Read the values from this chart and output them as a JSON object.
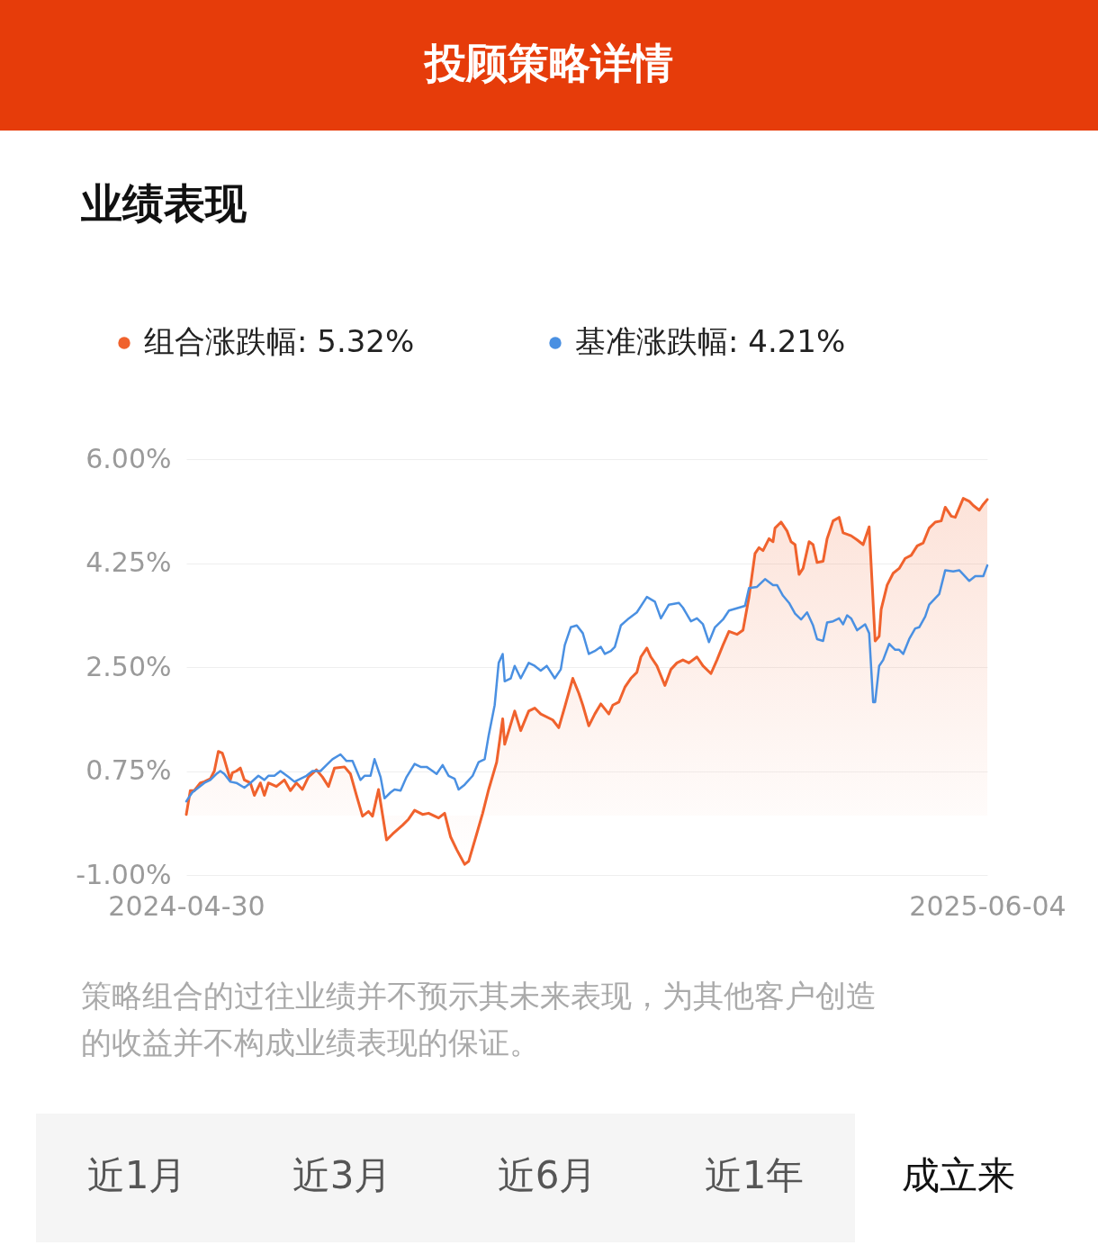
{
  "chart_data": {
    "type": "line",
    "title": "投顾策略详情",
    "subtitle": "业绩表现",
    "xlim": [
      "2024-04-30",
      "2025-06-04"
    ],
    "xticks": [
      "2024-04-30",
      "2025-06-04"
    ],
    "ylim": [
      -1,
      6
    ],
    "yticks": [
      {
        "value": -1,
        "label": "-1.00%"
      },
      {
        "value": 0.75,
        "label": "0.75%"
      },
      {
        "value": 2.5,
        "label": "2.50%"
      },
      {
        "value": 4.25,
        "label": "4.25%"
      },
      {
        "value": 6,
        "label": "6.00%"
      }
    ],
    "grid": "y",
    "legend": "top",
    "line_style": "solid",
    "series": [
      {
        "name": "组合涨跌幅: 5.32%",
        "type": "area",
        "color": "#f0622d",
        "x": [
          "2024-04-30",
          "2024-05-02",
          "2024-05-04",
          "2024-05-07",
          "2024-05-09",
          "2024-05-12",
          "2024-05-14",
          "2024-05-16",
          "2024-05-18",
          "2024-05-19",
          "2024-05-22",
          "2024-05-23",
          "2024-05-25",
          "2024-05-27",
          "2024-05-29",
          "2024-06-01",
          "2024-06-03",
          "2024-06-06",
          "2024-06-08",
          "2024-06-10",
          "2024-06-14",
          "2024-06-18",
          "2024-06-21",
          "2024-06-24",
          "2024-06-27",
          "2024-06-30",
          "2024-07-04",
          "2024-07-07",
          "2024-07-10",
          "2024-07-13",
          "2024-07-18",
          "2024-07-21",
          "2024-07-24",
          "2024-07-27",
          "2024-07-30",
          "2024-08-01",
          "2024-08-04",
          "2024-08-08",
          "2024-08-11",
          "2024-08-16",
          "2024-08-19",
          "2024-08-22",
          "2024-08-26",
          "2024-08-29",
          "2024-09-03",
          "2024-09-06",
          "2024-09-09",
          "2024-09-12",
          "2024-09-16",
          "2024-09-18",
          "2024-09-22",
          "2024-09-25",
          "2024-09-28",
          "2024-10-02",
          "2024-10-05",
          "2024-10-06",
          "2024-10-11",
          "2024-10-14",
          "2024-10-18",
          "2024-10-21",
          "2024-10-24",
          "2024-10-30",
          "2024-11-02",
          "2024-11-05",
          "2024-11-09",
          "2024-11-12",
          "2024-11-14",
          "2024-11-17",
          "2024-11-20",
          "2024-11-23",
          "2024-11-27",
          "2024-11-29",
          "2024-12-02",
          "2024-12-05",
          "2024-12-08",
          "2024-12-11",
          "2024-12-13",
          "2024-12-16",
          "2024-12-18",
          "2024-12-21",
          "2024-12-25",
          "2024-12-28",
          "2024-12-31",
          "2025-01-03",
          "2025-01-06",
          "2025-01-10",
          "2025-01-13",
          "2025-01-17",
          "2025-01-20",
          "2025-01-23",
          "2025-01-26",
          "2025-01-30",
          "2025-02-02",
          "2025-02-05",
          "2025-02-08",
          "2025-02-10",
          "2025-02-12",
          "2025-02-15",
          "2025-02-17",
          "2025-02-18",
          "2025-02-21",
          "2025-02-24",
          "2025-02-26",
          "2025-02-28",
          "2025-03-02",
          "2025-03-04",
          "2025-03-07",
          "2025-03-09",
          "2025-03-11",
          "2025-03-14",
          "2025-03-16",
          "2025-03-19",
          "2025-03-22",
          "2025-03-24",
          "2025-03-28",
          "2025-03-31",
          "2025-04-03",
          "2025-04-06",
          "2025-04-09",
          "2025-04-11",
          "2025-04-12",
          "2025-04-15",
          "2025-04-18",
          "2025-04-21",
          "2025-04-24",
          "2025-04-27",
          "2025-04-30",
          "2025-05-03",
          "2025-05-06",
          "2025-05-09",
          "2025-05-12",
          "2025-05-14",
          "2025-05-17",
          "2025-05-19",
          "2025-05-23",
          "2025-05-26",
          "2025-05-28",
          "2025-05-31",
          "2025-06-02",
          "2025-06-04"
        ],
        "values": [
          0.02,
          0.42,
          0.42,
          0.55,
          0.57,
          0.62,
          0.75,
          1.08,
          1.05,
          0.95,
          0.6,
          0.72,
          0.75,
          0.8,
          0.6,
          0.55,
          0.34,
          0.55,
          0.34,
          0.55,
          0.49,
          0.6,
          0.42,
          0.55,
          0.44,
          0.65,
          0.77,
          0.65,
          0.49,
          0.8,
          0.82,
          0.7,
          0.34,
          -0.01,
          0.07,
          -0.01,
          0.44,
          -0.41,
          -0.31,
          -0.16,
          -0.06,
          0.09,
          0.02,
          0.04,
          -0.04,
          0.04,
          -0.36,
          -0.57,
          -0.82,
          -0.77,
          -0.31,
          0.04,
          0.44,
          0.9,
          1.63,
          1.2,
          1.76,
          1.43,
          1.76,
          1.81,
          1.71,
          1.61,
          1.48,
          1.83,
          2.31,
          2.06,
          1.86,
          1.51,
          1.71,
          1.88,
          1.71,
          1.86,
          1.91,
          2.16,
          2.31,
          2.41,
          2.67,
          2.82,
          2.67,
          2.52,
          2.19,
          2.46,
          2.57,
          2.62,
          2.57,
          2.67,
          2.52,
          2.39,
          2.62,
          2.87,
          3.1,
          3.05,
          3.12,
          3.68,
          4.41,
          4.51,
          4.46,
          4.66,
          4.61,
          4.84,
          4.94,
          4.79,
          4.61,
          4.56,
          4.06,
          4.16,
          4.61,
          4.56,
          4.26,
          4.28,
          4.66,
          4.96,
          5.02,
          4.76,
          4.71,
          4.64,
          4.56,
          4.86,
          2.94,
          3.02,
          3.47,
          3.88,
          4.08,
          4.16,
          4.33,
          4.38,
          4.54,
          4.59,
          4.84,
          4.94,
          4.96,
          5.19,
          5.04,
          5.02,
          5.34,
          5.29,
          5.22,
          5.14,
          5.24,
          5.32
        ]
      },
      {
        "name": "基准涨跌幅: 4.21%",
        "color": "#4a90e2",
        "x": [
          "2024-04-30",
          "2024-05-03",
          "2024-05-06",
          "2024-05-09",
          "2024-05-12",
          "2024-05-15",
          "2024-05-17",
          "2024-05-19",
          "2024-05-22",
          "2024-05-25",
          "2024-05-29",
          "2024-06-01",
          "2024-06-05",
          "2024-06-08",
          "2024-06-10",
          "2024-06-13",
          "2024-06-16",
          "2024-06-20",
          "2024-06-23",
          "2024-06-26",
          "2024-06-29",
          "2024-07-02",
          "2024-07-06",
          "2024-07-09",
          "2024-07-12",
          "2024-07-16",
          "2024-07-19",
          "2024-07-22",
          "2024-07-26",
          "2024-07-28",
          "2024-07-31",
          "2024-08-02",
          "2024-08-05",
          "2024-08-07",
          "2024-08-10",
          "2024-08-12",
          "2024-08-15",
          "2024-08-18",
          "2024-08-22",
          "2024-08-25",
          "2024-08-28",
          "2024-08-31",
          "2024-09-02",
          "2024-09-05",
          "2024-09-08",
          "2024-09-11",
          "2024-09-13",
          "2024-09-16",
          "2024-09-20",
          "2024-09-23",
          "2024-09-26",
          "2024-09-28",
          "2024-10-01",
          "2024-10-03",
          "2024-10-05",
          "2024-10-06",
          "2024-10-09",
          "2024-10-11",
          "2024-10-14",
          "2024-10-18",
          "2024-10-21",
          "2024-10-24",
          "2024-10-27",
          "2024-10-31",
          "2024-11-03",
          "2024-11-05",
          "2024-11-08",
          "2024-11-11",
          "2024-11-14",
          "2024-11-17",
          "2024-11-20",
          "2024-11-23",
          "2024-11-25",
          "2024-11-28",
          "2024-11-30",
          "2024-12-03",
          "2024-12-07",
          "2024-12-11",
          "2024-12-16",
          "2024-12-20",
          "2024-12-23",
          "2024-12-27",
          "2025-01-01",
          "2025-01-03",
          "2025-01-07",
          "2025-01-10",
          "2025-01-13",
          "2025-01-16",
          "2025-01-19",
          "2025-01-23",
          "2025-01-26",
          "2025-01-31",
          "2025-02-03",
          "2025-02-05",
          "2025-02-09",
          "2025-02-13",
          "2025-02-17",
          "2025-02-19",
          "2025-02-22",
          "2025-02-25",
          "2025-02-28",
          "2025-03-03",
          "2025-03-06",
          "2025-03-09",
          "2025-03-11",
          "2025-03-14",
          "2025-03-16",
          "2025-03-19",
          "2025-03-22",
          "2025-03-24",
          "2025-03-26",
          "2025-03-28",
          "2025-03-31",
          "2025-04-04",
          "2025-04-06",
          "2025-04-08",
          "2025-04-09",
          "2025-04-11",
          "2025-04-13",
          "2025-04-16",
          "2025-04-19",
          "2025-04-21",
          "2025-04-23",
          "2025-04-26",
          "2025-04-29",
          "2025-05-01",
          "2025-05-04",
          "2025-05-06",
          "2025-05-11",
          "2025-05-14",
          "2025-05-18",
          "2025-05-21",
          "2025-05-23",
          "2025-05-26",
          "2025-05-29",
          "2025-05-31",
          "2025-06-02",
          "2025-06-04"
        ],
        "values": [
          0.24,
          0.39,
          0.47,
          0.55,
          0.6,
          0.7,
          0.75,
          0.7,
          0.57,
          0.55,
          0.47,
          0.55,
          0.67,
          0.6,
          0.67,
          0.67,
          0.75,
          0.65,
          0.57,
          0.62,
          0.67,
          0.75,
          0.75,
          0.85,
          0.95,
          1.03,
          0.92,
          0.92,
          0.6,
          0.67,
          0.67,
          0.95,
          0.65,
          0.29,
          0.39,
          0.44,
          0.42,
          0.65,
          0.87,
          0.82,
          0.82,
          0.75,
          0.7,
          0.85,
          0.67,
          0.62,
          0.44,
          0.52,
          0.67,
          0.9,
          0.95,
          1.35,
          1.86,
          2.57,
          2.72,
          2.26,
          2.31,
          2.52,
          2.31,
          2.57,
          2.52,
          2.44,
          2.52,
          2.31,
          2.46,
          2.87,
          3.17,
          3.2,
          3.07,
          2.72,
          2.77,
          2.84,
          2.72,
          2.77,
          2.84,
          3.2,
          3.32,
          3.42,
          3.68,
          3.6,
          3.32,
          3.55,
          3.58,
          3.5,
          3.27,
          3.32,
          3.22,
          2.92,
          3.17,
          3.3,
          3.45,
          3.5,
          3.53,
          3.83,
          3.85,
          3.98,
          3.88,
          3.88,
          3.7,
          3.58,
          3.4,
          3.3,
          3.42,
          3.2,
          2.97,
          2.94,
          3.25,
          3.27,
          3.32,
          3.22,
          3.37,
          3.32,
          3.12,
          3.22,
          3.07,
          1.91,
          1.91,
          2.52,
          2.62,
          2.89,
          2.79,
          2.79,
          2.72,
          2.97,
          3.15,
          3.17,
          3.35,
          3.55,
          3.73,
          4.13,
          4.11,
          4.13,
          4.06,
          3.95,
          4.03,
          4.03,
          4.03,
          4.21
        ]
      }
    ],
    "annotations": [
      "策略组合的过往业绩并不预示其未来表现，为其他客户创造的收益并不构成业绩表现的保证。",
      "近1月",
      "近3月",
      "近6月",
      "近1年",
      "成立来"
    ]
  }
}
